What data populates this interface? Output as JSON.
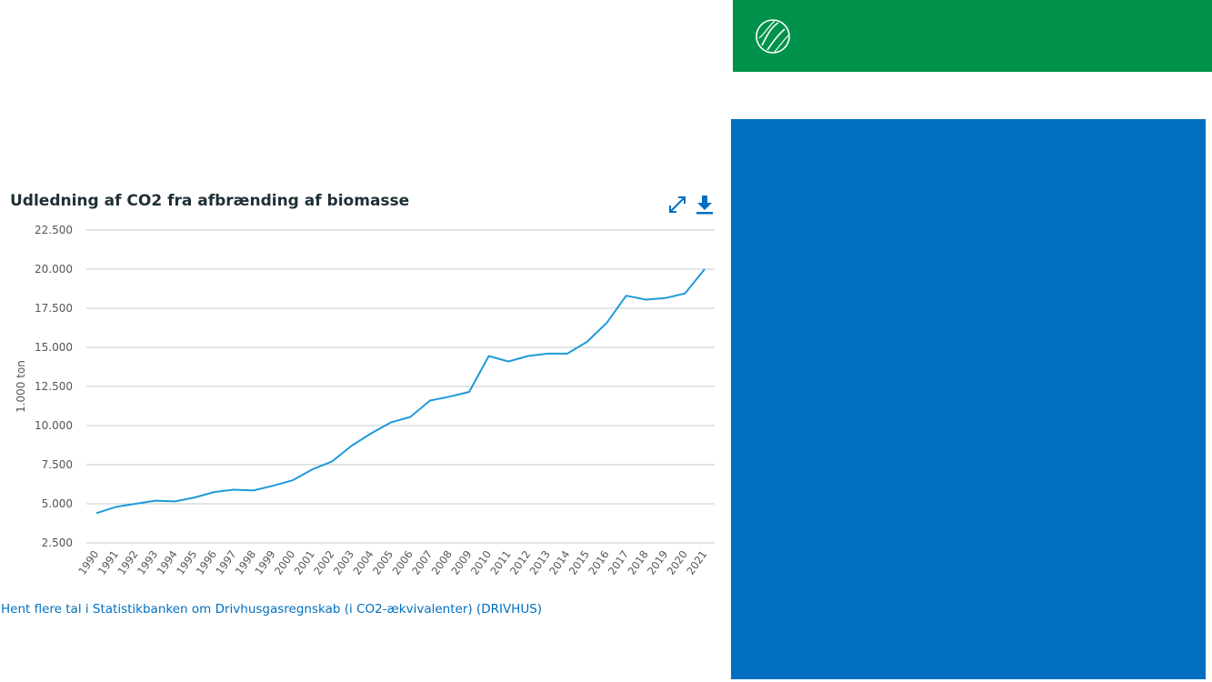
{
  "colors": {
    "header": "#00924a",
    "panel": "#006fc0",
    "line": "#1f9ad8",
    "grid": "#c8c8c8",
    "title": "#1f2f36"
  },
  "icons": {
    "logo": "dst-logo-icon",
    "expand": "expand-icon",
    "download": "download-icon"
  },
  "link_text": "Hent flere tal i Statistikbanken om Drivhusgasregnskab (i CO2-ækvivalenter) (DRIVHUS)",
  "chart_data": {
    "type": "line",
    "title": "Udledning af CO2 fra afbrænding af biomasse",
    "xlabel": "",
    "ylabel": "1.000 ton",
    "ylim": [
      2500,
      22500
    ],
    "yticks": [
      2500,
      5000,
      7500,
      10000,
      12500,
      15000,
      17500,
      20000,
      22500
    ],
    "ytick_labels": [
      "2.500",
      "5.000",
      "7.500",
      "10.000",
      "12.500",
      "15.000",
      "17.500",
      "20.000",
      "22.500"
    ],
    "grid": true,
    "legend": "none",
    "x": [
      "1990",
      "1991",
      "1992",
      "1993",
      "1994",
      "1995",
      "1996",
      "1997",
      "1998",
      "1999",
      "2000",
      "2001",
      "2002",
      "2003",
      "2004",
      "2005",
      "2006",
      "2007",
      "2008",
      "2009",
      "2010",
      "2011",
      "2012",
      "2013",
      "2014",
      "2015",
      "2016",
      "2017",
      "2018",
      "2019",
      "2020",
      "2021"
    ],
    "series": [
      {
        "values": [
          4400,
          4800,
          5000,
          5200,
          5150,
          5400,
          5750,
          5900,
          5850,
          6150,
          6500,
          7200,
          7700,
          8700,
          9500,
          10200,
          10550,
          11600,
          11850,
          12150,
          14450,
          14100,
          14450,
          14600,
          14600,
          15350,
          16550,
          18300,
          18050,
          18150,
          18450,
          20000
        ]
      }
    ]
  }
}
